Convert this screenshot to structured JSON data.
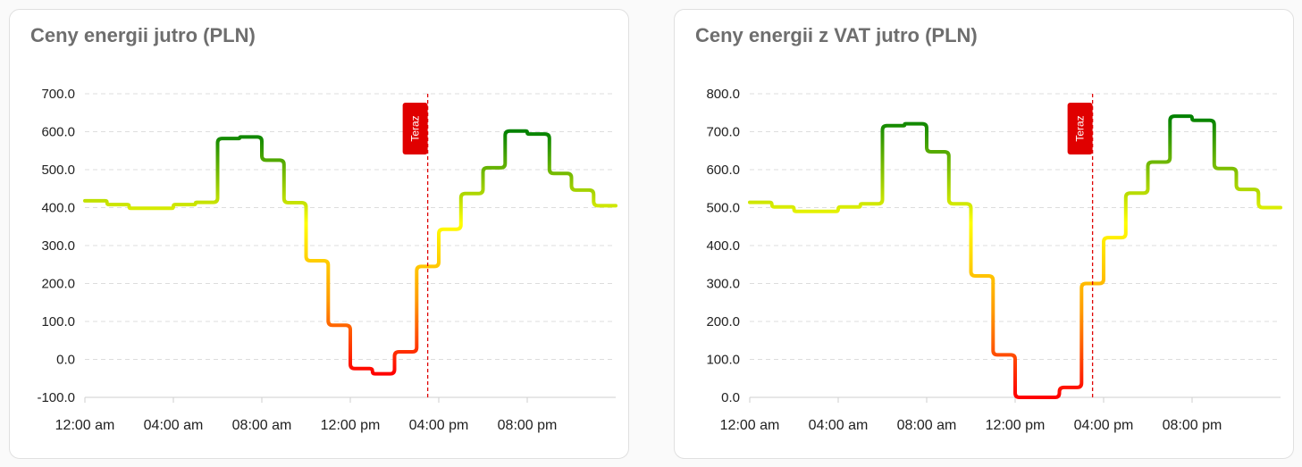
{
  "cards": [
    {
      "title": "Ceny energii jutro (PLN)",
      "now_label": "Teraz",
      "chart_data": {
        "type": "line",
        "step": true,
        "title": "Ceny energii jutro (PLN)",
        "ylim": [
          -100,
          700
        ],
        "yticks": [
          "700.0",
          "600.0",
          "500.0",
          "400.0",
          "300.0",
          "200.0",
          "100.0",
          "0.0",
          "-100.0"
        ],
        "xticks": [
          "12:00 am",
          "04:00 am",
          "08:00 am",
          "12:00 pm",
          "04:00 pm",
          "08:00 pm"
        ],
        "xrange_hours": [
          0,
          24
        ],
        "now_hour": 15.5,
        "grid": true,
        "series": [
          {
            "hours": [
              0,
              1,
              2,
              3,
              4,
              5,
              6,
              7,
              8,
              9,
              10,
              11,
              12,
              13,
              14,
              15,
              16,
              17,
              18,
              19,
              20,
              21,
              22,
              23
            ],
            "values": [
              418,
              408,
              398,
              398,
              408,
              414,
              582,
              586,
              525,
              413,
              260,
              90,
              -24,
              -38,
              20,
              245,
              343,
              437,
              505,
              602,
              594,
              490,
              446,
              405
            ]
          }
        ]
      },
      "colors": {
        "max": "#008000",
        "high": "#ffff00",
        "mid": "#ff9900",
        "low": "#ff0000",
        "now_line": "#e00000"
      }
    },
    {
      "title": "Ceny energii z VAT jutro (PLN)",
      "now_label": "Teraz",
      "chart_data": {
        "type": "line",
        "step": true,
        "title": "Ceny energii z VAT jutro (PLN)",
        "ylim": [
          0,
          800
        ],
        "yticks": [
          "800.0",
          "700.0",
          "600.0",
          "500.0",
          "400.0",
          "300.0",
          "200.0",
          "100.0",
          "0.0"
        ],
        "xticks": [
          "12:00 am",
          "04:00 am",
          "08:00 am",
          "12:00 pm",
          "04:00 pm",
          "08:00 pm"
        ],
        "xrange_hours": [
          0,
          24
        ],
        "now_hour": 15.5,
        "grid": true,
        "series": [
          {
            "hours": [
              0,
              1,
              2,
              3,
              4,
              5,
              6,
              7,
              8,
              9,
              10,
              11,
              12,
              13,
              14,
              15,
              16,
              17,
              18,
              19,
              20,
              21,
              22,
              23
            ],
            "values": [
              514,
              502,
              490,
              490,
              502,
              510,
              716,
              721,
              647,
              510,
              320,
              112,
              0,
              0,
              26,
              300,
              421,
              538,
              620,
              741,
              730,
              603,
              548,
              500
            ]
          }
        ]
      },
      "colors": {
        "max": "#008000",
        "high": "#ffff00",
        "mid": "#ff9900",
        "low": "#ff0000",
        "now_line": "#e00000"
      }
    }
  ]
}
